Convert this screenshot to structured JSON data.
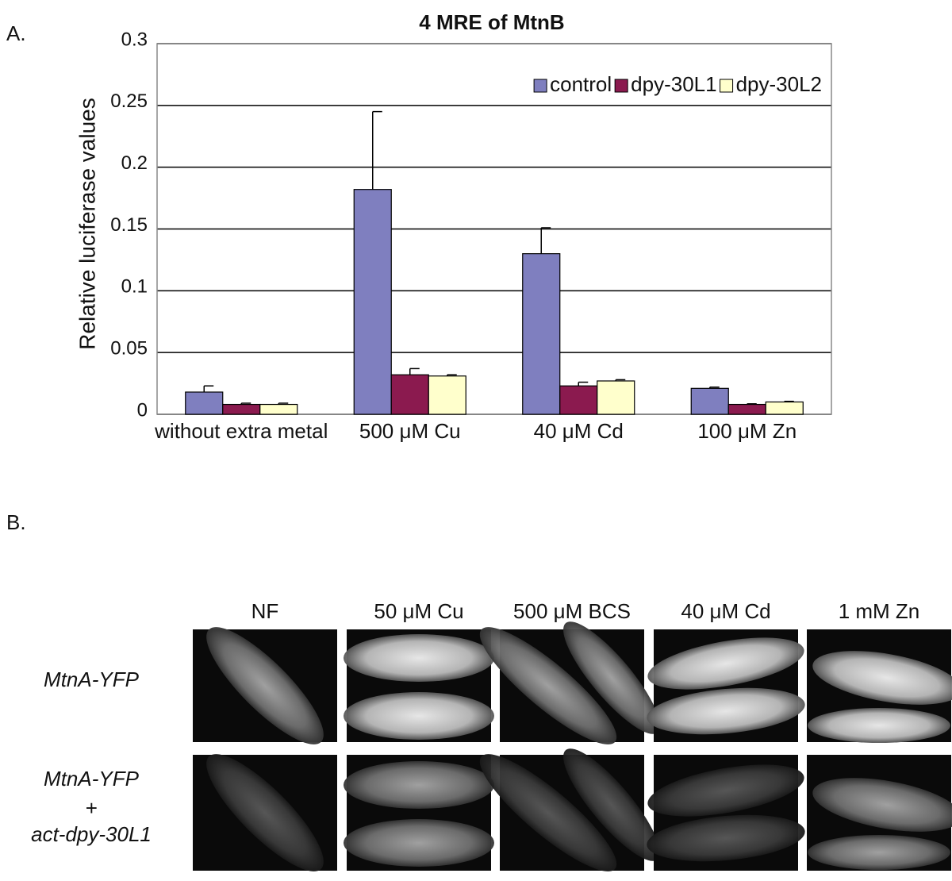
{
  "panel_labels": [
    "A.",
    "B."
  ],
  "chart_data": {
    "type": "bar",
    "title": "4 MRE of MtnB",
    "y_label": "Relative luciferase values",
    "categories": [
      "without extra metal",
      "500 μM Cu",
      "40 μM Cd",
      "100 μM Zn"
    ],
    "series": [
      {
        "name": "control",
        "color": "#7f7fbf",
        "values": [
          0.018,
          0.182,
          0.13,
          0.021
        ],
        "errors": [
          0.005,
          0.063,
          0.021,
          0.001
        ]
      },
      {
        "name": "dpy-30L1",
        "color": "#8b1a4f",
        "values": [
          0.008,
          0.032,
          0.023,
          0.008
        ],
        "errors": [
          0.001,
          0.005,
          0.003,
          0.0005
        ]
      },
      {
        "name": "dpy-30L2",
        "color": "#ffffcc",
        "values": [
          0.008,
          0.031,
          0.027,
          0.01
        ],
        "errors": [
          0.001,
          0.001,
          0.001,
          0.0005
        ]
      }
    ],
    "ylim": [
      0,
      0.3
    ],
    "yticks": [
      0,
      0.05,
      0.1,
      0.15,
      0.2,
      0.25,
      0.3
    ],
    "grid": true,
    "legend": "top-right"
  },
  "micrographs": {
    "columns": [
      "NF",
      "50 μM Cu",
      "500 μM BCS",
      "40 μM Cd",
      "1 mM Zn"
    ],
    "rows": [
      [
        "MtnA-YFP"
      ],
      [
        "MtnA-YFP",
        "+",
        "act-dpy-30L1"
      ]
    ]
  }
}
